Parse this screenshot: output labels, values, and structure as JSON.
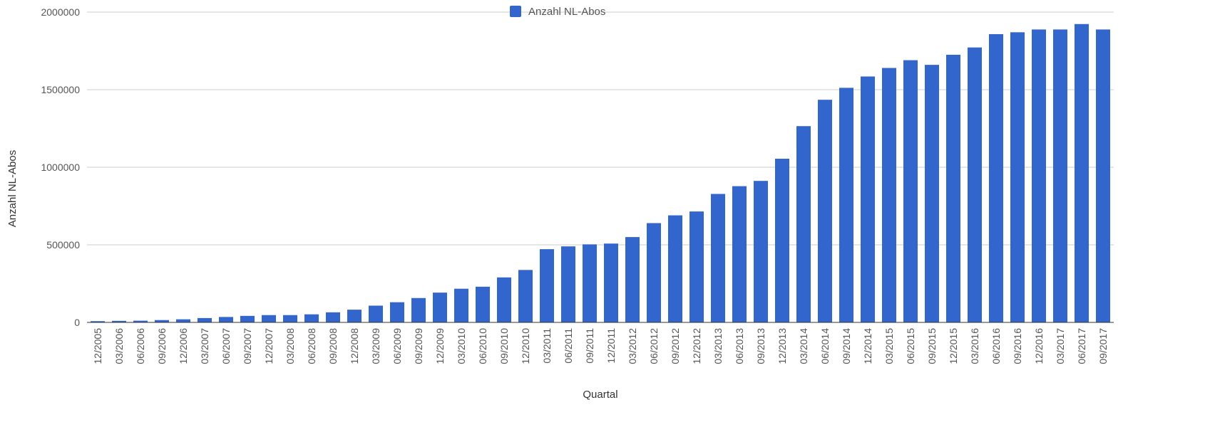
{
  "chart_data": {
    "type": "bar",
    "xlabel": "Quartal",
    "ylabel": "Anzahl NL-Abos",
    "ylim": [
      0,
      2000000
    ],
    "yticks": [
      "0",
      "500000",
      "1000000",
      "1500000",
      "2000000"
    ],
    "grid": true,
    "legend_position": "top-center",
    "categories": [
      "12/2005",
      "03/2006",
      "06/2006",
      "09/2006",
      "12/2006",
      "03/2007",
      "06/2007",
      "09/2007",
      "12/2007",
      "03/2008",
      "06/2008",
      "09/2008",
      "12/2008",
      "03/2009",
      "06/2009",
      "09/2009",
      "12/2009",
      "03/2010",
      "06/2010",
      "09/2010",
      "12/2010",
      "03/2011",
      "06/2011",
      "09/2011",
      "12/2011",
      "03/2012",
      "06/2012",
      "09/2012",
      "12/2012",
      "03/2013",
      "06/2013",
      "09/2013",
      "12/2013",
      "03/2014",
      "06/2014",
      "09/2014",
      "12/2014",
      "03/2015",
      "06/2015",
      "09/2015",
      "12/2015",
      "03/2016",
      "06/2016",
      "09/2016",
      "12/2016",
      "03/2017",
      "06/2017",
      "09/2017"
    ],
    "series": [
      {
        "name": "Anzahl NL-Abos",
        "color": "#3366cc",
        "values": [
          8000,
          10000,
          11000,
          15000,
          20000,
          28000,
          35000,
          42000,
          47000,
          47000,
          52000,
          65000,
          82000,
          108000,
          130000,
          157000,
          192000,
          217000,
          230000,
          290000,
          338000,
          472000,
          490000,
          503000,
          508000,
          550000,
          640000,
          690000,
          715000,
          828000,
          878000,
          912000,
          1055000,
          1265000,
          1435000,
          1512000,
          1585000,
          1640000,
          1690000,
          1660000,
          1725000,
          1772000,
          1858000,
          1870000,
          1888000,
          1888000,
          1923000,
          1888000
        ]
      }
    ]
  }
}
